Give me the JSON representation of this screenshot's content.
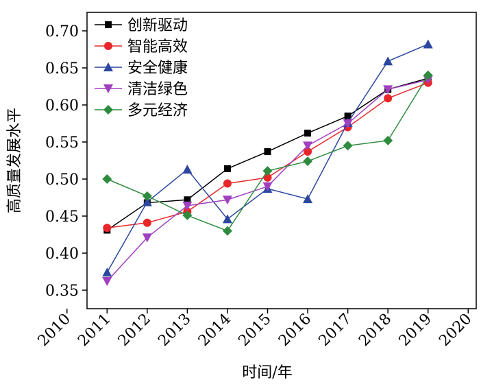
{
  "chart_data": {
    "type": "line",
    "x_label": "时间/年",
    "y_label": "高质量发展水平",
    "x": [
      2011,
      2012,
      2013,
      2014,
      2015,
      2016,
      2017,
      2018,
      2019
    ],
    "xlim": [
      2010.5,
      2020.2
    ],
    "xticks": [
      2010,
      2011,
      2012,
      2013,
      2014,
      2015,
      2016,
      2017,
      2018,
      2019,
      2020
    ],
    "ylim": [
      0.325,
      0.725
    ],
    "yticks": [
      {
        "value": 0.35,
        "label": "0.35"
      },
      {
        "value": 0.4,
        "label": "0.40"
      },
      {
        "value": 0.45,
        "label": "0.45"
      },
      {
        "value": 0.5,
        "label": "0.50"
      },
      {
        "value": 0.55,
        "label": "0.55"
      },
      {
        "value": 0.6,
        "label": "0.60"
      },
      {
        "value": 0.65,
        "label": "0.65"
      },
      {
        "value": 0.7,
        "label": "0.70"
      }
    ],
    "legend": "upper-left",
    "series": [
      {
        "name": "创新驱动",
        "color": "#000000",
        "marker": "square",
        "values": [
          0.431,
          0.468,
          0.472,
          0.514,
          0.537,
          0.562,
          0.585,
          0.621,
          0.636
        ]
      },
      {
        "name": "智能高效",
        "color": "#e8262a",
        "marker": "circle",
        "values": [
          0.434,
          0.441,
          0.456,
          0.494,
          0.502,
          0.537,
          0.57,
          0.609,
          0.63
        ]
      },
      {
        "name": "安全健康",
        "color": "#2b47a0",
        "marker": "triangle-up",
        "values": [
          0.374,
          0.469,
          0.513,
          0.446,
          0.487,
          0.473,
          0.576,
          0.659,
          0.682
        ]
      },
      {
        "name": "清洁绿色",
        "color": "#a040c0",
        "marker": "triangle-down",
        "values": [
          0.362,
          0.421,
          0.464,
          0.472,
          0.49,
          0.545,
          0.575,
          0.621,
          0.634
        ]
      },
      {
        "name": "多元经济",
        "color": "#2e8b3e",
        "marker": "diamond",
        "values": [
          0.5,
          0.477,
          0.451,
          0.43,
          0.511,
          0.524,
          0.545,
          0.552,
          0.64
        ]
      }
    ]
  }
}
